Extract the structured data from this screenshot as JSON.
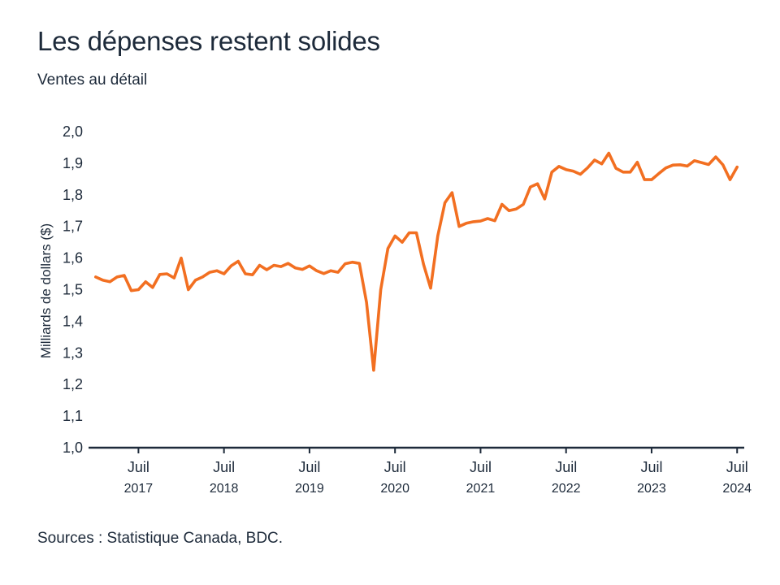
{
  "title": "Les dépenses restent solides",
  "subtitle": "Ventes au détail",
  "source": "Sources : Statistique Canada, BDC.",
  "colors": {
    "line": "#f26f21",
    "axis": "#1d2a3a",
    "text": "#1d2a3a"
  },
  "chart_data": {
    "type": "line",
    "title": "Les dépenses restent solides",
    "subtitle": "Ventes au détail",
    "xlabel": "",
    "ylabel": "Milliards de dollars ($)",
    "ylim": [
      1.0,
      2.0
    ],
    "yticks": [
      1.0,
      1.1,
      1.2,
      1.3,
      1.4,
      1.5,
      1.6,
      1.7,
      1.8,
      1.9,
      2.0
    ],
    "ytick_labels": [
      "1,0",
      "1,1",
      "1,2",
      "1,3",
      "1,4",
      "1,5",
      "1,6",
      "1,7",
      "1,8",
      "1,9",
      "2,0"
    ],
    "xticks": [
      {
        "date": "2017-07",
        "month": "Juil",
        "year": "2017"
      },
      {
        "date": "2018-07",
        "month": "Juil",
        "year": "2018"
      },
      {
        "date": "2019-07",
        "month": "Juil",
        "year": "2019"
      },
      {
        "date": "2020-07",
        "month": "Juil",
        "year": "2020"
      },
      {
        "date": "2021-07",
        "month": "Juil",
        "year": "2021"
      },
      {
        "date": "2022-07",
        "month": "Juil",
        "year": "2022"
      },
      {
        "date": "2023-07",
        "month": "Juil",
        "year": "2023"
      },
      {
        "date": "2024-07",
        "month": "Juil",
        "year": "2024"
      }
    ],
    "grid": false,
    "legend": "none",
    "x": [
      "2017-01",
      "2017-02",
      "2017-03",
      "2017-04",
      "2017-05",
      "2017-06",
      "2017-07",
      "2017-08",
      "2017-09",
      "2017-10",
      "2017-11",
      "2017-12",
      "2018-01",
      "2018-02",
      "2018-03",
      "2018-04",
      "2018-05",
      "2018-06",
      "2018-07",
      "2018-08",
      "2018-09",
      "2018-10",
      "2018-11",
      "2018-12",
      "2019-01",
      "2019-02",
      "2019-03",
      "2019-04",
      "2019-05",
      "2019-06",
      "2019-07",
      "2019-08",
      "2019-09",
      "2019-10",
      "2019-11",
      "2019-12",
      "2020-01",
      "2020-02",
      "2020-03",
      "2020-04",
      "2020-05",
      "2020-06",
      "2020-07",
      "2020-08",
      "2020-09",
      "2020-10",
      "2020-11",
      "2020-12",
      "2021-01",
      "2021-02",
      "2021-03",
      "2021-04",
      "2021-05",
      "2021-06",
      "2021-07",
      "2021-08",
      "2021-09",
      "2021-10",
      "2021-11",
      "2021-12",
      "2022-01",
      "2022-02",
      "2022-03",
      "2022-04",
      "2022-05",
      "2022-06",
      "2022-07",
      "2022-08",
      "2022-09",
      "2022-10",
      "2022-11",
      "2022-12",
      "2023-01",
      "2023-02",
      "2023-03",
      "2023-04",
      "2023-05",
      "2023-06",
      "2023-07",
      "2023-08",
      "2023-09",
      "2023-10",
      "2023-11",
      "2023-12",
      "2024-01",
      "2024-02",
      "2024-03",
      "2024-04",
      "2024-05",
      "2024-06",
      "2024-07"
    ],
    "series": [
      {
        "values": [
          1.54,
          1.53,
          1.525,
          1.54,
          1.545,
          1.497,
          1.5,
          1.525,
          1.507,
          1.548,
          1.55,
          1.537,
          1.6,
          1.5,
          1.53,
          1.54,
          1.555,
          1.56,
          1.55,
          1.575,
          1.59,
          1.55,
          1.547,
          1.577,
          1.563,
          1.577,
          1.573,
          1.583,
          1.569,
          1.564,
          1.575,
          1.56,
          1.551,
          1.56,
          1.555,
          1.582,
          1.587,
          1.583,
          1.46,
          1.245,
          1.5,
          1.63,
          1.67,
          1.65,
          1.68,
          1.68,
          1.58,
          1.505,
          1.67,
          1.775,
          1.807,
          1.7,
          1.71,
          1.715,
          1.717,
          1.725,
          1.718,
          1.77,
          1.75,
          1.755,
          1.77,
          1.825,
          1.835,
          1.787,
          1.872,
          1.89,
          1.88,
          1.875,
          1.865,
          1.885,
          1.91,
          1.898,
          1.932,
          1.884,
          1.872,
          1.872,
          1.903,
          1.848,
          1.848,
          1.867,
          1.885,
          1.894,
          1.895,
          1.891,
          1.908,
          1.902,
          1.896,
          1.92,
          1.895,
          1.848,
          1.888
        ]
      }
    ]
  }
}
